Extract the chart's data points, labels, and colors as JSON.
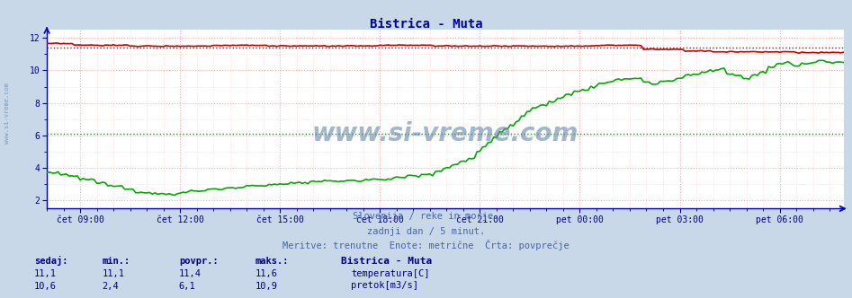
{
  "title": "Bistrica - Muta",
  "title_color": "#000099",
  "title_fontsize": 10,
  "bg_color": "#c8d8e8",
  "plot_bg_color": "#ffffff",
  "grid_color_major": "#ffaaaa",
  "grid_color_minor": "#ffd0d0",
  "axis_color": "#0000cc",
  "tick_color": "#000080",
  "xlim": [
    0,
    287
  ],
  "ylim": [
    1.5,
    12.5
  ],
  "yticks": [
    2,
    4,
    6,
    8,
    10,
    12
  ],
  "xtick_labels": [
    "čet 09:00",
    "čet 12:00",
    "čet 15:00",
    "čet 18:00",
    "čet 21:00",
    "pet 00:00",
    "pet 03:00",
    "pet 06:00"
  ],
  "xtick_positions": [
    12,
    48,
    84,
    120,
    156,
    192,
    228,
    264
  ],
  "temp_color": "#cc0000",
  "flow_color": "#00aa00",
  "watermark": "www.si-vreme.com",
  "watermark_color": "#6688aa",
  "subtitle1": "Slovenija / reke in morje.",
  "subtitle2": "zadnji dan / 5 minut.",
  "subtitle3": "Meritve: trenutne  Enote: metrične  Črta: povprečje",
  "subtitle_color": "#4466aa",
  "legend_title": "Bistrica - Muta",
  "legend_color": "#000080",
  "stats_color": "#000080",
  "left_label": "www.si-vreme.com",
  "temp_avg_value": 11.4,
  "flow_avg_value": 6.1,
  "temp_min": 11.1,
  "temp_max": 11.6,
  "temp_current": 11.1,
  "flow_min": 2.4,
  "flow_max": 10.9,
  "flow_current": 10.6,
  "temp_povpr": 11.4,
  "flow_povpr": 6.1
}
